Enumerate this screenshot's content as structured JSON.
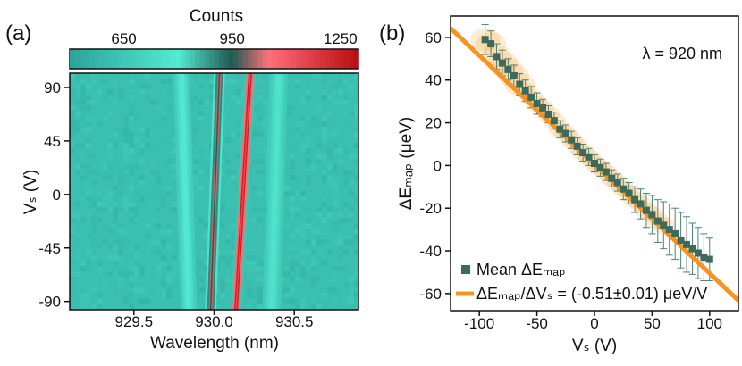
{
  "chart_data": [
    {
      "panel": "(a)",
      "type": "heatmap",
      "colorbar": {
        "title": "Counts",
        "ticks": [
          650,
          950,
          1250
        ],
        "range": [
          500,
          1300
        ],
        "stops": [
          {
            "v": 500,
            "color": "#2aa39a"
          },
          {
            "v": 800,
            "color": "#53ead2"
          },
          {
            "v": 950,
            "color": "#1f5a52"
          },
          {
            "v": 1050,
            "color": "#ff6f7a"
          },
          {
            "v": 1300,
            "color": "#b80d10"
          }
        ]
      },
      "xlabel": "Wavelength (nm)",
      "xticks": [
        "929.5",
        "930.0",
        "930.5"
      ],
      "xtick_values": [
        929.5,
        930.0,
        930.5
      ],
      "xlim": [
        929.1,
        930.9
      ],
      "ylabel": "Vₛ (V)",
      "yticks": [
        "90",
        "45",
        "0",
        "-45",
        "-90"
      ],
      "ytick_values": [
        90,
        45,
        0,
        -45,
        -90
      ],
      "ylim": [
        -97,
        102
      ],
      "background_counts": 620,
      "lines": [
        {
          "wl_at_minus_v": 929.84,
          "wl_at_plus_v": 929.8,
          "width_nm": 0.016,
          "peak_counts": 790
        },
        {
          "wl_at_minus_v": 929.98,
          "wl_at_plus_v": 930.03,
          "width_nm": 0.011,
          "peak_counts": 1020
        },
        {
          "wl_at_minus_v": 930.14,
          "wl_at_plus_v": 930.22,
          "width_nm": 0.011,
          "peak_counts": 1250
        },
        {
          "wl_at_minus_v": 930.36,
          "wl_at_plus_v": 930.4,
          "width_nm": 0.018,
          "peak_counts": 760
        }
      ]
    },
    {
      "panel": "(b)",
      "type": "scatter",
      "annotation": "λ = 920 nm",
      "xlabel": "Vₛ (V)",
      "ylabel": "ΔEₘₐₚ (μeV)",
      "xlim": [
        -125,
        125
      ],
      "ylim": [
        -68,
        70
      ],
      "xticks": [
        -100,
        -50,
        0,
        50,
        100
      ],
      "yticks": [
        60,
        40,
        20,
        0,
        -20,
        -40,
        -60
      ],
      "legend": [
        {
          "label": "Mean ΔEₘₐₚ",
          "marker": "square",
          "color": "#3e6a5c"
        },
        {
          "label": "ΔEₘₐₚ/ΔVₛ = (-0.51±0.01) μeV/V",
          "marker": "line",
          "color": "#f7931e"
        }
      ],
      "legend_position": "bottom-left",
      "series": [
        {
          "name": "Mean ΔEₘₐₚ",
          "x": [
            -95,
            -90,
            -85,
            -80,
            -75,
            -70,
            -65,
            -60,
            -55,
            -50,
            -45,
            -40,
            -35,
            -30,
            -25,
            -20,
            -15,
            -10,
            -5,
            0,
            5,
            10,
            15,
            20,
            25,
            30,
            35,
            40,
            45,
            50,
            55,
            60,
            65,
            70,
            75,
            80,
            85,
            90,
            95,
            100
          ],
          "y": [
            59,
            57,
            51,
            48,
            45,
            42,
            38,
            35,
            32,
            29,
            27,
            24,
            21,
            17,
            15,
            12,
            9,
            6,
            4,
            1,
            -1,
            -3,
            -6,
            -8,
            -11,
            -13,
            -16,
            -18,
            -21,
            -23,
            -26,
            -28,
            -30,
            -32,
            -35,
            -37,
            -39,
            -41,
            -43,
            -44
          ],
          "err": [
            7,
            6,
            6,
            6,
            5,
            5,
            5,
            5,
            5,
            5,
            4,
            4,
            4,
            4,
            4,
            4,
            4,
            4,
            4,
            4,
            4,
            4,
            4,
            4,
            5,
            5,
            6,
            7,
            8,
            9,
            10,
            11,
            12,
            12,
            13,
            13,
            12,
            12,
            11,
            10
          ]
        },
        {
          "name": "ΔEₘₐₚ/ΔVₛ = (-0.51±0.01) μeV/V",
          "fit": {
            "slope": -0.51,
            "intercept": 0.5
          }
        }
      ]
    }
  ],
  "panel_tags": {
    "a": "(a)",
    "b": "(b)"
  }
}
